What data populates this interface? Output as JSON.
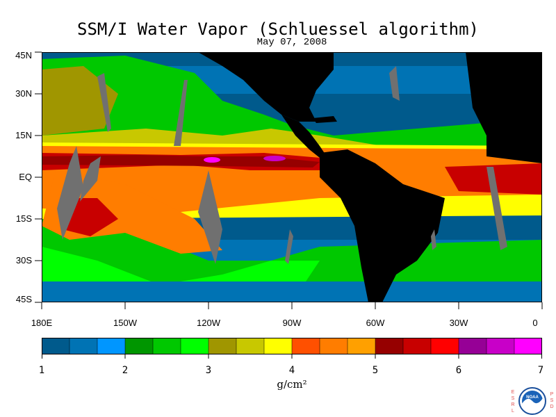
{
  "title": "SSM/I Water Vapor (Schluessel algorithm)",
  "subtitle": "May 07, 2008",
  "units": "g/cm²",
  "lat_labels": [
    "45N",
    "30N",
    "15N",
    "EQ",
    "15S",
    "30S",
    "45S"
  ],
  "lon_labels": [
    "180E",
    "150W",
    "120W",
    "90W",
    "60W",
    "30W",
    "0"
  ],
  "colorbar": {
    "min": 1,
    "max": 7,
    "labels": [
      "1",
      "2",
      "3",
      "4",
      "5",
      "6",
      "7"
    ],
    "colors": [
      "#005a8c",
      "#0073b4",
      "#0096ff",
      "#009600",
      "#00c800",
      "#00ff00",
      "#a09600",
      "#c8c800",
      "#ffff00",
      "#ff5000",
      "#ff7d00",
      "#ffa000",
      "#960000",
      "#c80000",
      "#ff0000",
      "#960096",
      "#c800c8",
      "#ff00ff"
    ]
  },
  "logo": {
    "left_letters": "ESRL",
    "right_letters": "PSD",
    "emblem_text": "NOAA"
  }
}
